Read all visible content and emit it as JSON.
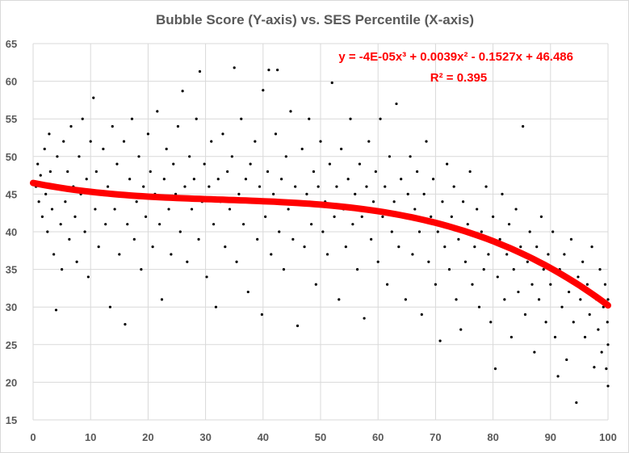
{
  "chart_data": {
    "type": "scatter",
    "title": "Bubble Score (Y-axis) vs. SES Percentile (X-axis)",
    "xlabel": "",
    "ylabel": "",
    "xlim": [
      0,
      100
    ],
    "ylim": [
      15,
      65
    ],
    "xticks": [
      0,
      10,
      20,
      30,
      40,
      50,
      60,
      70,
      80,
      90,
      100
    ],
    "yticks": [
      15,
      20,
      25,
      30,
      35,
      40,
      45,
      50,
      55,
      60,
      65
    ],
    "grid": true,
    "marker_color": "#000000",
    "trendline": {
      "type": "polynomial-3",
      "coefficients": [
        -4e-05,
        0.0039,
        -0.1527,
        46.486
      ],
      "color": "#ff0000",
      "equation": "y = -4E-05x³ + 0.0039x² - 0.1527x + 46.486",
      "r2_label": "R² = 0.395"
    },
    "points": [
      [
        0.5,
        46
      ],
      [
        0.8,
        49
      ],
      [
        1,
        44
      ],
      [
        1.3,
        47.5
      ],
      [
        1.6,
        42
      ],
      [
        2,
        51
      ],
      [
        2.2,
        45
      ],
      [
        2.5,
        40
      ],
      [
        2.8,
        53
      ],
      [
        3,
        48
      ],
      [
        3.3,
        43
      ],
      [
        3.6,
        37
      ],
      [
        4,
        29.6
      ],
      [
        4.2,
        50
      ],
      [
        4.5,
        46
      ],
      [
        4.8,
        41
      ],
      [
        5,
        35
      ],
      [
        5.3,
        52
      ],
      [
        5.6,
        44
      ],
      [
        6,
        48
      ],
      [
        6.3,
        39
      ],
      [
        6.6,
        54
      ],
      [
        7,
        46
      ],
      [
        7.3,
        42
      ],
      [
        7.6,
        36
      ],
      [
        8,
        50
      ],
      [
        8.3,
        45
      ],
      [
        8.6,
        55
      ],
      [
        9,
        40
      ],
      [
        9.3,
        47
      ],
      [
        9.6,
        34
      ],
      [
        10,
        52
      ],
      [
        10.5,
        57.8
      ],
      [
        10.8,
        43
      ],
      [
        11,
        48
      ],
      [
        11.4,
        38
      ],
      [
        11.8,
        45
      ],
      [
        12.2,
        51
      ],
      [
        12.6,
        41
      ],
      [
        13,
        46
      ],
      [
        13.4,
        30
      ],
      [
        13.8,
        54
      ],
      [
        14.2,
        43
      ],
      [
        14.6,
        49
      ],
      [
        15,
        37
      ],
      [
        15.4,
        45
      ],
      [
        15.8,
        52
      ],
      [
        16,
        27.7
      ],
      [
        16.4,
        41
      ],
      [
        16.8,
        47
      ],
      [
        17.2,
        55
      ],
      [
        17.6,
        39
      ],
      [
        18,
        44
      ],
      [
        18.4,
        50
      ],
      [
        18.8,
        35
      ],
      [
        19.2,
        46
      ],
      [
        19.6,
        42
      ],
      [
        20,
        53
      ],
      [
        20.4,
        48
      ],
      [
        20.8,
        38
      ],
      [
        21.2,
        45
      ],
      [
        21.6,
        56
      ],
      [
        22,
        41
      ],
      [
        22.4,
        31
      ],
      [
        22.8,
        47
      ],
      [
        23.2,
        51
      ],
      [
        23.6,
        43
      ],
      [
        24,
        37
      ],
      [
        24.4,
        49
      ],
      [
        24.8,
        45
      ],
      [
        25.2,
        54
      ],
      [
        25.6,
        40
      ],
      [
        26,
        58.7
      ],
      [
        26.4,
        46
      ],
      [
        26.8,
        36
      ],
      [
        27.2,
        50
      ],
      [
        27.6,
        43
      ],
      [
        28,
        47
      ],
      [
        28.4,
        55
      ],
      [
        28.8,
        39
      ],
      [
        29,
        61.3
      ],
      [
        29.4,
        44
      ],
      [
        29.8,
        49
      ],
      [
        30.2,
        34
      ],
      [
        30.6,
        46
      ],
      [
        31,
        52
      ],
      [
        31.4,
        41
      ],
      [
        31.8,
        30
      ],
      [
        32.2,
        47
      ],
      [
        32.6,
        44
      ],
      [
        33,
        53
      ],
      [
        33.4,
        38
      ],
      [
        33.8,
        48
      ],
      [
        34.2,
        43
      ],
      [
        34.6,
        50
      ],
      [
        35,
        61.8
      ],
      [
        35.4,
        36
      ],
      [
        35.8,
        45
      ],
      [
        36.2,
        55
      ],
      [
        36.6,
        41
      ],
      [
        37,
        47
      ],
      [
        37.4,
        32
      ],
      [
        37.8,
        49
      ],
      [
        38.2,
        44
      ],
      [
        38.6,
        52
      ],
      [
        39,
        39
      ],
      [
        39.4,
        46
      ],
      [
        39.8,
        29
      ],
      [
        40,
        58.8
      ],
      [
        40.4,
        42
      ],
      [
        40.8,
        48
      ],
      [
        41,
        61.5
      ],
      [
        41.4,
        37
      ],
      [
        41.8,
        45
      ],
      [
        42.2,
        53
      ],
      [
        42.5,
        61.5
      ],
      [
        42.8,
        40
      ],
      [
        43.2,
        47
      ],
      [
        43.6,
        35
      ],
      [
        44,
        50
      ],
      [
        44.4,
        43
      ],
      [
        44.8,
        56
      ],
      [
        45.2,
        39
      ],
      [
        45.6,
        46
      ],
      [
        46,
        27.5
      ],
      [
        46.4,
        44
      ],
      [
        46.8,
        51
      ],
      [
        47.2,
        38
      ],
      [
        47.6,
        45
      ],
      [
        48,
        55
      ],
      [
        48.4,
        41
      ],
      [
        48.8,
        48
      ],
      [
        49.2,
        33
      ],
      [
        49.6,
        46
      ],
      [
        50,
        52
      ],
      [
        50.4,
        40
      ],
      [
        50.8,
        44
      ],
      [
        51.2,
        37
      ],
      [
        51.6,
        49
      ],
      [
        52,
        59.8
      ],
      [
        52.4,
        42
      ],
      [
        52.8,
        46
      ],
      [
        53.2,
        31
      ],
      [
        53.6,
        51
      ],
      [
        54,
        43
      ],
      [
        54.4,
        38
      ],
      [
        54.8,
        47
      ],
      [
        55.2,
        55
      ],
      [
        55.6,
        41
      ],
      [
        56,
        45
      ],
      [
        56.4,
        35
      ],
      [
        56.8,
        49
      ],
      [
        57.2,
        42
      ],
      [
        57.6,
        28.5
      ],
      [
        58,
        46
      ],
      [
        58.4,
        52
      ],
      [
        58.8,
        39
      ],
      [
        59.2,
        44
      ],
      [
        59.6,
        48
      ],
      [
        60,
        36
      ],
      [
        60.4,
        55
      ],
      [
        60.8,
        42
      ],
      [
        61.2,
        46
      ],
      [
        61.6,
        33
      ],
      [
        62,
        50
      ],
      [
        62.4,
        40
      ],
      [
        62.8,
        44
      ],
      [
        63.2,
        57
      ],
      [
        63.6,
        38
      ],
      [
        64,
        47
      ],
      [
        64.4,
        42
      ],
      [
        64.8,
        31
      ],
      [
        65.2,
        45
      ],
      [
        65.6,
        50
      ],
      [
        66,
        37
      ],
      [
        66.4,
        43
      ],
      [
        66.8,
        48
      ],
      [
        67.2,
        40
      ],
      [
        67.6,
        29
      ],
      [
        68,
        45
      ],
      [
        68.4,
        52
      ],
      [
        68.8,
        36
      ],
      [
        69.2,
        42
      ],
      [
        69.6,
        47
      ],
      [
        70,
        33
      ],
      [
        70.4,
        40
      ],
      [
        70.8,
        25.5
      ],
      [
        71.2,
        44
      ],
      [
        71.6,
        38
      ],
      [
        72,
        49
      ],
      [
        72.4,
        35
      ],
      [
        72.8,
        42
      ],
      [
        73.2,
        46
      ],
      [
        73.6,
        31
      ],
      [
        74,
        39
      ],
      [
        74.4,
        27
      ],
      [
        74.8,
        44
      ],
      [
        75.2,
        36
      ],
      [
        75.6,
        41
      ],
      [
        76,
        48
      ],
      [
        76.4,
        33
      ],
      [
        76.8,
        38
      ],
      [
        77.2,
        43
      ],
      [
        77.6,
        30
      ],
      [
        78,
        40
      ],
      [
        78.4,
        35
      ],
      [
        78.8,
        46
      ],
      [
        79.2,
        37
      ],
      [
        79.6,
        28
      ],
      [
        80,
        42
      ],
      [
        80.4,
        21.8
      ],
      [
        80.8,
        34
      ],
      [
        81.2,
        39
      ],
      [
        81.6,
        45
      ],
      [
        82,
        31
      ],
      [
        82.4,
        37
      ],
      [
        82.8,
        41
      ],
      [
        83.2,
        26
      ],
      [
        83.6,
        35
      ],
      [
        84,
        43
      ],
      [
        84.4,
        32
      ],
      [
        84.8,
        38
      ],
      [
        85.2,
        54
      ],
      [
        85.6,
        29
      ],
      [
        86,
        36
      ],
      [
        86.4,
        40
      ],
      [
        86.8,
        33
      ],
      [
        87.2,
        24
      ],
      [
        87.6,
        38
      ],
      [
        88,
        31
      ],
      [
        88.4,
        42
      ],
      [
        88.8,
        35
      ],
      [
        89.2,
        28
      ],
      [
        89.6,
        37
      ],
      [
        90,
        33
      ],
      [
        90.4,
        40
      ],
      [
        90.8,
        26
      ],
      [
        91.3,
        20.8
      ],
      [
        91.6,
        35
      ],
      [
        92,
        30
      ],
      [
        92.4,
        37
      ],
      [
        92.8,
        23
      ],
      [
        93.2,
        32
      ],
      [
        93.6,
        39
      ],
      [
        94,
        28
      ],
      [
        94.5,
        17.3
      ],
      [
        94.8,
        34
      ],
      [
        95.2,
        31
      ],
      [
        95.6,
        36
      ],
      [
        96,
        26
      ],
      [
        96.4,
        33
      ],
      [
        96.8,
        29
      ],
      [
        97.2,
        38
      ],
      [
        97.6,
        22
      ],
      [
        98,
        31
      ],
      [
        98.3,
        27
      ],
      [
        98.6,
        35
      ],
      [
        98.9,
        24
      ],
      [
        99.2,
        30
      ],
      [
        99.5,
        33
      ],
      [
        99.7,
        21.8
      ],
      [
        99.9,
        28
      ],
      [
        100,
        19.5
      ],
      [
        100,
        31
      ],
      [
        100,
        25
      ]
    ]
  }
}
